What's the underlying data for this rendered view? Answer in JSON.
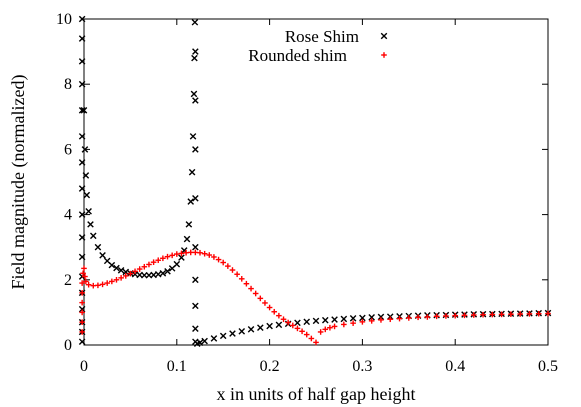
{
  "chart_data": {
    "type": "scatter",
    "title": "",
    "xlabel": "x in units of half gap height",
    "ylabel": "Field magnitude (normalized)",
    "xlim": [
      0,
      0.5
    ],
    "ylim": [
      0,
      10
    ],
    "x_ticks": [
      "0",
      "0.1",
      "0.2",
      "0.3",
      "0.4",
      "0.5"
    ],
    "y_ticks": [
      "0",
      "2",
      "4",
      "6",
      "8",
      "10"
    ],
    "legend_position": "top-right",
    "series": [
      {
        "name": "Rose Shim",
        "marker": "x",
        "color": "#000000",
        "points": [
          [
            -0.002,
            10.0
          ],
          [
            -0.002,
            9.4
          ],
          [
            -0.002,
            8.7
          ],
          [
            -0.002,
            8.0
          ],
          [
            -0.002,
            7.2
          ],
          [
            -0.002,
            6.4
          ],
          [
            -0.002,
            5.6
          ],
          [
            -0.002,
            4.8
          ],
          [
            -0.002,
            4.0
          ],
          [
            -0.002,
            3.3
          ],
          [
            -0.002,
            2.7
          ],
          [
            -0.002,
            2.1
          ],
          [
            -0.002,
            1.6
          ],
          [
            -0.002,
            1.1
          ],
          [
            -0.002,
            0.7
          ],
          [
            -0.002,
            0.4
          ],
          [
            -0.002,
            0.1
          ],
          [
            0.0,
            7.2
          ],
          [
            0.001,
            6.0
          ],
          [
            0.002,
            5.2
          ],
          [
            0.003,
            4.6
          ],
          [
            0.005,
            4.1
          ],
          [
            0.007,
            3.7
          ],
          [
            0.01,
            3.35
          ],
          [
            0.015,
            3.0
          ],
          [
            0.02,
            2.75
          ],
          [
            0.025,
            2.58
          ],
          [
            0.03,
            2.45
          ],
          [
            0.035,
            2.36
          ],
          [
            0.04,
            2.29
          ],
          [
            0.045,
            2.24
          ],
          [
            0.05,
            2.2
          ],
          [
            0.055,
            2.17
          ],
          [
            0.06,
            2.15
          ],
          [
            0.065,
            2.14
          ],
          [
            0.07,
            2.14
          ],
          [
            0.075,
            2.15
          ],
          [
            0.08,
            2.17
          ],
          [
            0.085,
            2.2
          ],
          [
            0.09,
            2.26
          ],
          [
            0.095,
            2.35
          ],
          [
            0.1,
            2.48
          ],
          [
            0.105,
            2.68
          ],
          [
            0.108,
            2.9
          ],
          [
            0.111,
            3.25
          ],
          [
            0.113,
            3.7
          ],
          [
            0.115,
            4.4
          ],
          [
            0.1165,
            5.3
          ],
          [
            0.1175,
            6.4
          ],
          [
            0.1185,
            7.7
          ],
          [
            0.119,
            8.8
          ],
          [
            0.1195,
            9.9
          ],
          [
            0.12,
            9.0
          ],
          [
            0.12,
            7.5
          ],
          [
            0.12,
            6.0
          ],
          [
            0.12,
            4.5
          ],
          [
            0.12,
            3.0
          ],
          [
            0.12,
            2.0
          ],
          [
            0.12,
            1.2
          ],
          [
            0.12,
            0.5
          ],
          [
            0.12,
            0.1
          ],
          [
            0.122,
            0.04
          ],
          [
            0.125,
            0.07
          ],
          [
            0.13,
            0.12
          ],
          [
            0.14,
            0.2
          ],
          [
            0.15,
            0.28
          ],
          [
            0.16,
            0.35
          ],
          [
            0.17,
            0.42
          ],
          [
            0.18,
            0.48
          ],
          [
            0.19,
            0.53
          ],
          [
            0.2,
            0.58
          ],
          [
            0.21,
            0.62
          ],
          [
            0.22,
            0.65
          ],
          [
            0.23,
            0.68
          ],
          [
            0.24,
            0.71
          ],
          [
            0.25,
            0.74
          ],
          [
            0.26,
            0.76
          ],
          [
            0.27,
            0.78
          ],
          [
            0.28,
            0.8
          ],
          [
            0.29,
            0.82
          ],
          [
            0.3,
            0.83
          ],
          [
            0.31,
            0.85
          ],
          [
            0.32,
            0.86
          ],
          [
            0.33,
            0.87
          ],
          [
            0.34,
            0.88
          ],
          [
            0.35,
            0.89
          ],
          [
            0.36,
            0.9
          ],
          [
            0.37,
            0.91
          ],
          [
            0.38,
            0.915
          ],
          [
            0.39,
            0.92
          ],
          [
            0.4,
            0.93
          ],
          [
            0.41,
            0.935
          ],
          [
            0.42,
            0.94
          ],
          [
            0.43,
            0.945
          ],
          [
            0.44,
            0.95
          ],
          [
            0.45,
            0.955
          ],
          [
            0.46,
            0.96
          ],
          [
            0.47,
            0.965
          ],
          [
            0.48,
            0.97
          ],
          [
            0.49,
            0.975
          ],
          [
            0.5,
            0.98
          ]
        ]
      },
      {
        "name": "Rounded shim",
        "marker": "+",
        "color": "#ff0000",
        "points": [
          [
            -0.002,
            0.4
          ],
          [
            -0.002,
            0.7
          ],
          [
            -0.002,
            1.0
          ],
          [
            -0.002,
            1.3
          ],
          [
            -0.002,
            1.6
          ],
          [
            -0.002,
            1.9
          ],
          [
            -0.001,
            2.2
          ],
          [
            0.0,
            2.35
          ],
          [
            0.001,
            2.1
          ],
          [
            0.002,
            1.95
          ],
          [
            0.005,
            1.85
          ],
          [
            0.01,
            1.82
          ],
          [
            0.015,
            1.83
          ],
          [
            0.02,
            1.86
          ],
          [
            0.025,
            1.9
          ],
          [
            0.03,
            1.95
          ],
          [
            0.035,
            2.0
          ],
          [
            0.04,
            2.06
          ],
          [
            0.045,
            2.12
          ],
          [
            0.05,
            2.19
          ],
          [
            0.055,
            2.26
          ],
          [
            0.06,
            2.33
          ],
          [
            0.065,
            2.4
          ],
          [
            0.07,
            2.47
          ],
          [
            0.075,
            2.54
          ],
          [
            0.08,
            2.6
          ],
          [
            0.085,
            2.66
          ],
          [
            0.09,
            2.71
          ],
          [
            0.095,
            2.75
          ],
          [
            0.1,
            2.79
          ],
          [
            0.105,
            2.81
          ],
          [
            0.11,
            2.83
          ],
          [
            0.115,
            2.84
          ],
          [
            0.12,
            2.84
          ],
          [
            0.125,
            2.83
          ],
          [
            0.13,
            2.8
          ],
          [
            0.135,
            2.76
          ],
          [
            0.14,
            2.7
          ],
          [
            0.145,
            2.62
          ],
          [
            0.15,
            2.53
          ],
          [
            0.155,
            2.42
          ],
          [
            0.16,
            2.3
          ],
          [
            0.165,
            2.17
          ],
          [
            0.17,
            2.03
          ],
          [
            0.175,
            1.88
          ],
          [
            0.18,
            1.73
          ],
          [
            0.185,
            1.58
          ],
          [
            0.19,
            1.43
          ],
          [
            0.195,
            1.29
          ],
          [
            0.2,
            1.15
          ],
          [
            0.205,
            1.02
          ],
          [
            0.21,
            0.9
          ],
          [
            0.215,
            0.79
          ],
          [
            0.22,
            0.69
          ],
          [
            0.225,
            0.6
          ],
          [
            0.23,
            0.51
          ],
          [
            0.235,
            0.42
          ],
          [
            0.24,
            0.32
          ],
          [
            0.245,
            0.2
          ],
          [
            0.25,
            0.08
          ],
          [
            0.255,
            0.4
          ],
          [
            0.26,
            0.48
          ],
          [
            0.265,
            0.53
          ],
          [
            0.27,
            0.57
          ],
          [
            0.28,
            0.63
          ],
          [
            0.29,
            0.67
          ],
          [
            0.3,
            0.71
          ],
          [
            0.31,
            0.74
          ],
          [
            0.32,
            0.77
          ],
          [
            0.33,
            0.79
          ],
          [
            0.34,
            0.81
          ],
          [
            0.35,
            0.83
          ],
          [
            0.36,
            0.85
          ],
          [
            0.37,
            0.86
          ],
          [
            0.38,
            0.88
          ],
          [
            0.39,
            0.89
          ],
          [
            0.4,
            0.9
          ],
          [
            0.41,
            0.91
          ],
          [
            0.42,
            0.92
          ],
          [
            0.43,
            0.93
          ],
          [
            0.44,
            0.935
          ],
          [
            0.45,
            0.94
          ],
          [
            0.46,
            0.945
          ],
          [
            0.47,
            0.95
          ],
          [
            0.48,
            0.955
          ],
          [
            0.49,
            0.96
          ],
          [
            0.5,
            0.965
          ]
        ]
      }
    ]
  }
}
